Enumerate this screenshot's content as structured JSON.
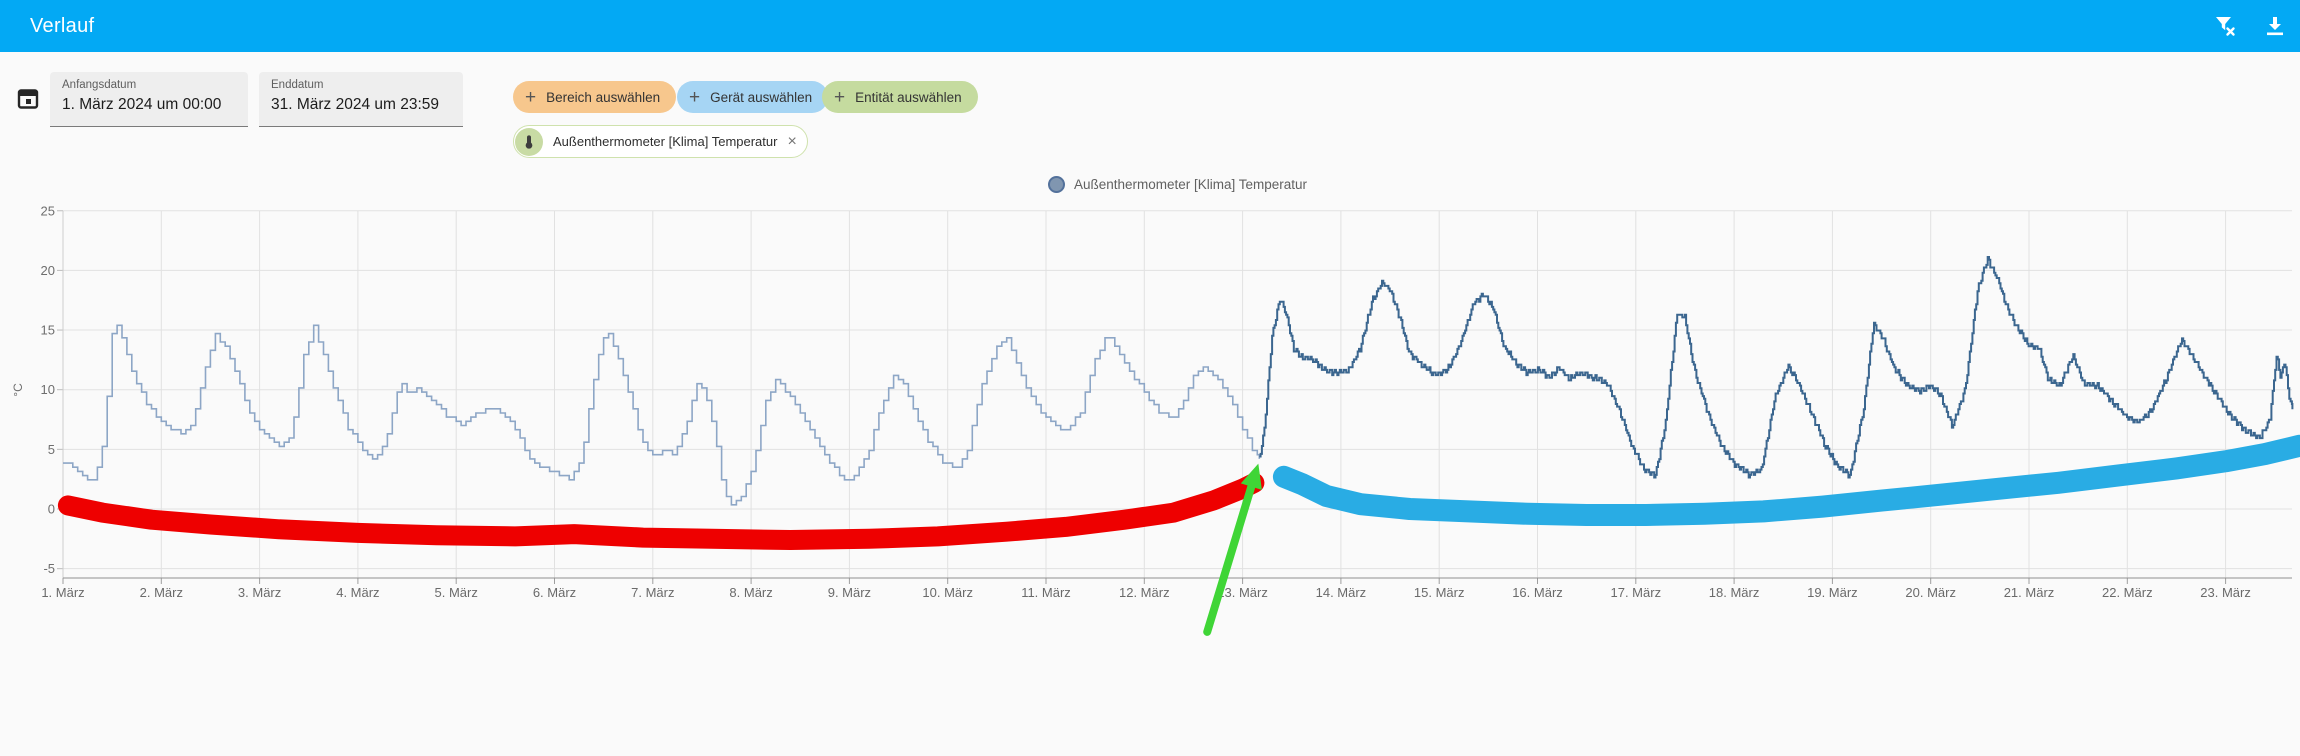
{
  "header": {
    "title": "Verlauf",
    "background": "#03a9f4",
    "icons": [
      {
        "name": "filter-remove-icon"
      },
      {
        "name": "download-icon"
      }
    ]
  },
  "toolbar": {
    "date_fields": [
      {
        "label": "Anfangsdatum",
        "value": "1. März 2024 um 00:00"
      },
      {
        "label": "Enddatum",
        "value": "31. März 2024 um 23:59"
      }
    ],
    "filter_chips": [
      {
        "label": "Bereich auswählen",
        "color": "#f7c78d"
      },
      {
        "label": "Gerät auswählen",
        "color": "#a6d5f4"
      },
      {
        "label": "Entität auswählen",
        "color": "#c5db9f"
      }
    ],
    "entity_chip": {
      "label": "Außenthermometer [Klima] Temperatur",
      "icon": "thermometer-icon",
      "close": "×"
    }
  },
  "legend": {
    "label": "Außenthermometer [Klima] Temperatur",
    "marker_fill": "#8096b0",
    "marker_border": "#53719b"
  },
  "chart_data": {
    "type": "line",
    "title": "",
    "ylabel": "°C",
    "unit": "°C",
    "ylim": [
      -5,
      25
    ],
    "y_ticks": [
      25,
      20,
      15,
      10,
      5,
      0,
      -5
    ],
    "x_tick_labels": [
      "1. März",
      "2. März",
      "3. März",
      "4. März",
      "5. März",
      "6. März",
      "7. März",
      "8. März",
      "9. März",
      "10. März",
      "11. März",
      "12. März",
      "13. März",
      "14. März",
      "15. März",
      "16. März",
      "17. März",
      "18. März",
      "19. März",
      "20. März",
      "21. März",
      "22. März",
      "23. März"
    ],
    "x_range_days": [
      1,
      23.75
    ],
    "grid": true,
    "legend_position": "top",
    "series": [
      {
        "name": "Außenthermometer [Klima] Temperatur",
        "style": "light-stepped",
        "color": "#8da6c6",
        "stroke_width": 1.6,
        "points": [
          [
            1.0,
            4.0
          ],
          [
            1.1,
            3.4
          ],
          [
            1.22,
            2.6
          ],
          [
            1.32,
            2.5
          ],
          [
            1.42,
            6.0
          ],
          [
            1.5,
            14.8
          ],
          [
            1.55,
            15.4
          ],
          [
            1.62,
            13.8
          ],
          [
            1.72,
            11.0
          ],
          [
            1.82,
            9.3
          ],
          [
            1.95,
            7.6
          ],
          [
            2.08,
            6.8
          ],
          [
            2.2,
            6.4
          ],
          [
            2.32,
            7.2
          ],
          [
            2.45,
            12.0
          ],
          [
            2.55,
            14.8
          ],
          [
            2.65,
            13.5
          ],
          [
            2.78,
            10.8
          ],
          [
            2.9,
            8.0
          ],
          [
            3.05,
            6.2
          ],
          [
            3.2,
            5.1
          ],
          [
            3.32,
            6.0
          ],
          [
            3.45,
            13.0
          ],
          [
            3.55,
            15.3
          ],
          [
            3.65,
            13.0
          ],
          [
            3.78,
            9.5
          ],
          [
            3.9,
            6.8
          ],
          [
            4.05,
            4.8
          ],
          [
            4.18,
            4.0
          ],
          [
            4.3,
            6.3
          ],
          [
            4.42,
            10.7
          ],
          [
            4.52,
            9.7
          ],
          [
            4.62,
            10.1
          ],
          [
            4.75,
            9.2
          ],
          [
            4.9,
            7.8
          ],
          [
            5.05,
            7.1
          ],
          [
            5.2,
            7.9
          ],
          [
            5.35,
            8.5
          ],
          [
            5.48,
            8.1
          ],
          [
            5.6,
            6.6
          ],
          [
            5.75,
            4.2
          ],
          [
            5.9,
            3.4
          ],
          [
            6.05,
            2.9
          ],
          [
            6.15,
            2.4
          ],
          [
            6.28,
            4.5
          ],
          [
            6.42,
            12.0
          ],
          [
            6.52,
            15.1
          ],
          [
            6.62,
            13.5
          ],
          [
            6.75,
            9.8
          ],
          [
            6.88,
            5.8
          ],
          [
            7.0,
            4.5
          ],
          [
            7.1,
            4.9
          ],
          [
            7.2,
            4.6
          ],
          [
            7.32,
            6.5
          ],
          [
            7.45,
            10.5
          ],
          [
            7.52,
            10.2
          ],
          [
            7.62,
            6.8
          ],
          [
            7.72,
            1.5
          ],
          [
            7.8,
            0.3
          ],
          [
            7.9,
            0.9
          ],
          [
            8.02,
            3.5
          ],
          [
            8.15,
            9.0
          ],
          [
            8.25,
            10.9
          ],
          [
            8.38,
            9.6
          ],
          [
            8.5,
            8.2
          ],
          [
            8.65,
            6.0
          ],
          [
            8.8,
            3.8
          ],
          [
            8.95,
            2.4
          ],
          [
            9.05,
            2.8
          ],
          [
            9.18,
            4.5
          ],
          [
            9.32,
            8.5
          ],
          [
            9.45,
            11.2
          ],
          [
            9.55,
            10.6
          ],
          [
            9.68,
            7.8
          ],
          [
            9.82,
            5.4
          ],
          [
            9.95,
            4.0
          ],
          [
            10.08,
            3.3
          ],
          [
            10.2,
            5.0
          ],
          [
            10.35,
            10.5
          ],
          [
            10.5,
            13.8
          ],
          [
            10.6,
            14.3
          ],
          [
            10.72,
            11.8
          ],
          [
            10.85,
            9.4
          ],
          [
            11.0,
            7.6
          ],
          [
            11.12,
            6.9
          ],
          [
            11.22,
            6.6
          ],
          [
            11.35,
            8.2
          ],
          [
            11.5,
            12.5
          ],
          [
            11.62,
            14.7
          ],
          [
            11.72,
            13.2
          ],
          [
            11.85,
            11.6
          ],
          [
            12.0,
            9.8
          ],
          [
            12.15,
            8.2
          ],
          [
            12.28,
            7.4
          ],
          [
            12.4,
            9.2
          ],
          [
            12.52,
            11.5
          ],
          [
            12.62,
            11.8
          ],
          [
            12.75,
            10.8
          ],
          [
            12.88,
            9.2
          ],
          [
            13.0,
            6.8
          ],
          [
            13.1,
            4.9
          ],
          [
            13.17,
            4.2
          ]
        ]
      },
      {
        "name": "Außenthermometer [Klima] Temperatur",
        "style": "dark-stepped",
        "color": "#3b668f",
        "stroke_width": 2,
        "points": [
          [
            13.17,
            4.2
          ],
          [
            13.22,
            6.5
          ],
          [
            13.3,
            14.5
          ],
          [
            13.38,
            17.6
          ],
          [
            13.45,
            16.2
          ],
          [
            13.52,
            13.4
          ],
          [
            13.6,
            12.7
          ],
          [
            13.72,
            12.5
          ],
          [
            13.82,
            11.7
          ],
          [
            13.95,
            11.4
          ],
          [
            14.08,
            11.6
          ],
          [
            14.2,
            13.5
          ],
          [
            14.32,
            17.5
          ],
          [
            14.42,
            19.0
          ],
          [
            14.5,
            18.4
          ],
          [
            14.6,
            16.0
          ],
          [
            14.7,
            13.0
          ],
          [
            14.82,
            12.1
          ],
          [
            14.95,
            11.3
          ],
          [
            15.08,
            11.6
          ],
          [
            15.2,
            13.5
          ],
          [
            15.35,
            17.2
          ],
          [
            15.45,
            18.0
          ],
          [
            15.55,
            16.8
          ],
          [
            15.65,
            13.8
          ],
          [
            15.78,
            12.2
          ],
          [
            15.9,
            11.4
          ],
          [
            16.02,
            11.7
          ],
          [
            16.12,
            11.0
          ],
          [
            16.22,
            11.9
          ],
          [
            16.32,
            10.9
          ],
          [
            16.45,
            11.4
          ],
          [
            16.58,
            11.0
          ],
          [
            16.7,
            10.6
          ],
          [
            16.82,
            8.6
          ],
          [
            16.95,
            5.5
          ],
          [
            17.08,
            3.4
          ],
          [
            17.2,
            2.8
          ],
          [
            17.3,
            7.0
          ],
          [
            17.42,
            16.4
          ],
          [
            17.5,
            16.0
          ],
          [
            17.6,
            11.5
          ],
          [
            17.72,
            8.4
          ],
          [
            17.85,
            5.6
          ],
          [
            18.0,
            3.8
          ],
          [
            18.15,
            2.9
          ],
          [
            18.28,
            3.3
          ],
          [
            18.42,
            9.5
          ],
          [
            18.55,
            12.0
          ],
          [
            18.65,
            10.6
          ],
          [
            18.78,
            8.2
          ],
          [
            18.92,
            5.4
          ],
          [
            19.05,
            3.6
          ],
          [
            19.18,
            2.8
          ],
          [
            19.32,
            8.5
          ],
          [
            19.42,
            15.6
          ],
          [
            19.52,
            14.2
          ],
          [
            19.62,
            12.0
          ],
          [
            19.75,
            10.4
          ],
          [
            19.88,
            9.9
          ],
          [
            20.0,
            10.3
          ],
          [
            20.1,
            9.6
          ],
          [
            20.22,
            6.9
          ],
          [
            20.35,
            10.0
          ],
          [
            20.48,
            18.5
          ],
          [
            20.58,
            20.9
          ],
          [
            20.68,
            19.3
          ],
          [
            20.78,
            16.8
          ],
          [
            20.88,
            15.2
          ],
          [
            21.0,
            13.7
          ],
          [
            21.1,
            13.5
          ],
          [
            21.2,
            10.8
          ],
          [
            21.32,
            10.4
          ],
          [
            21.45,
            12.9
          ],
          [
            21.55,
            10.6
          ],
          [
            21.7,
            10.3
          ],
          [
            21.85,
            9.0
          ],
          [
            22.0,
            7.6
          ],
          [
            22.12,
            7.3
          ],
          [
            22.25,
            8.3
          ],
          [
            22.4,
            11.0
          ],
          [
            22.55,
            14.2
          ],
          [
            22.65,
            13.0
          ],
          [
            22.78,
            11.2
          ],
          [
            22.92,
            9.4
          ],
          [
            23.05,
            7.8
          ],
          [
            23.2,
            6.6
          ],
          [
            23.35,
            6.0
          ],
          [
            23.45,
            7.5
          ],
          [
            23.52,
            12.9
          ],
          [
            23.56,
            11.0
          ],
          [
            23.6,
            12.4
          ],
          [
            23.64,
            9.8
          ],
          [
            23.68,
            8.4
          ]
        ]
      }
    ],
    "annotations": {
      "red_marker": {
        "color": "#ee0000",
        "width": 20,
        "points": [
          [
            1.05,
            0.3
          ],
          [
            1.4,
            -0.3
          ],
          [
            1.9,
            -0.9
          ],
          [
            2.5,
            -1.3
          ],
          [
            3.2,
            -1.7
          ],
          [
            4.0,
            -2.0
          ],
          [
            4.8,
            -2.2
          ],
          [
            5.6,
            -2.3
          ],
          [
            6.2,
            -2.1
          ],
          [
            6.9,
            -2.4
          ],
          [
            7.6,
            -2.5
          ],
          [
            8.4,
            -2.6
          ],
          [
            9.2,
            -2.5
          ],
          [
            9.9,
            -2.3
          ],
          [
            10.6,
            -1.9
          ],
          [
            11.2,
            -1.5
          ],
          [
            11.8,
            -0.9
          ],
          [
            12.3,
            -0.3
          ],
          [
            12.7,
            0.7
          ],
          [
            13.0,
            1.7
          ],
          [
            13.12,
            2.2
          ]
        ]
      },
      "blue_marker": {
        "color": "#29ace4",
        "width": 22,
        "points": [
          [
            13.42,
            2.7
          ],
          [
            13.6,
            2.1
          ],
          [
            13.85,
            1.1
          ],
          [
            14.2,
            0.4
          ],
          [
            14.7,
            0.0
          ],
          [
            15.3,
            -0.2
          ],
          [
            15.9,
            -0.4
          ],
          [
            16.5,
            -0.5
          ],
          [
            17.1,
            -0.5
          ],
          [
            17.7,
            -0.4
          ],
          [
            18.3,
            -0.2
          ],
          [
            18.9,
            0.2
          ],
          [
            19.5,
            0.7
          ],
          [
            20.1,
            1.2
          ],
          [
            20.7,
            1.7
          ],
          [
            21.3,
            2.2
          ],
          [
            21.9,
            2.8
          ],
          [
            22.5,
            3.4
          ],
          [
            23.0,
            4.0
          ],
          [
            23.4,
            4.6
          ],
          [
            23.75,
            5.3
          ]
        ]
      },
      "green_arrow": {
        "color": "#3fd536",
        "width": 8,
        "from": [
          12.64,
          -10.3
        ],
        "to": [
          13.16,
          3.8
        ]
      }
    }
  }
}
